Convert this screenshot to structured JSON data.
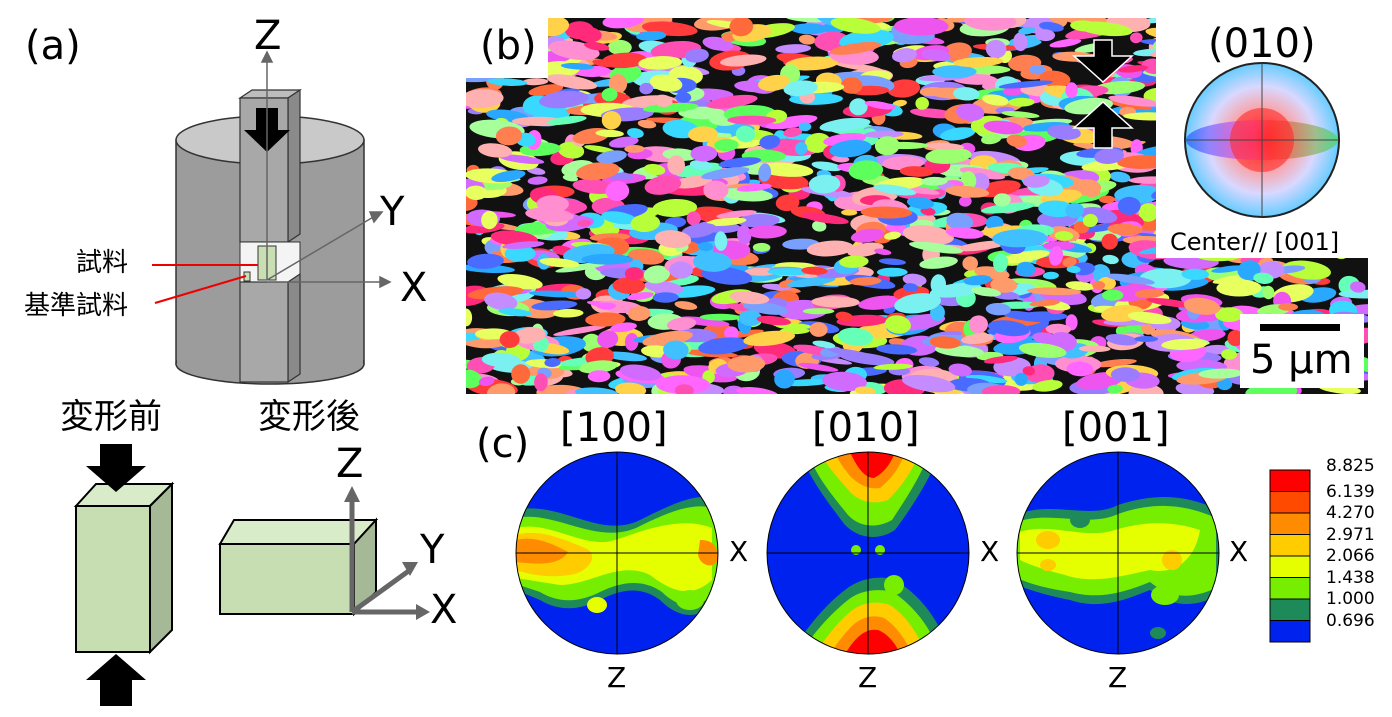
{
  "panels": {
    "a": {
      "label": "(a)",
      "axis_z": "Z",
      "axis_y": "Y",
      "axis_x": "X",
      "sample_label": "試料",
      "reference_label": "基準試料",
      "before_label": "変形前",
      "after_label": "変形後",
      "after_axis_z": "Z",
      "after_axis_y": "Y",
      "after_axis_x": "X"
    },
    "b": {
      "label": "(b)",
      "colorkey_title": "(010)",
      "colorkey_caption": "Center// [001]",
      "scalebar_label": "5 µm"
    },
    "c": {
      "label": "(c)",
      "poles": [
        {
          "title": "[100]",
          "right_axis": "X",
          "bottom_axis": "Z"
        },
        {
          "title": "[010]",
          "right_axis": "X",
          "bottom_axis": "Z"
        },
        {
          "title": "[001]",
          "right_axis": "X",
          "bottom_axis": "Z"
        }
      ],
      "legend": [
        {
          "value": "8.825",
          "color": "#ff0000"
        },
        {
          "value": "6.139",
          "color": "#ff4a00"
        },
        {
          "value": "4.270",
          "color": "#ff8c00"
        },
        {
          "value": "2.971",
          "color": "#ffcc00"
        },
        {
          "value": "2.066",
          "color": "#e6ff00"
        },
        {
          "value": "1.438",
          "color": "#77ee00"
        },
        {
          "value": "1.000",
          "color": "#1e8a5a"
        },
        {
          "value": "0.696",
          "color": "#0022ee"
        }
      ]
    }
  }
}
